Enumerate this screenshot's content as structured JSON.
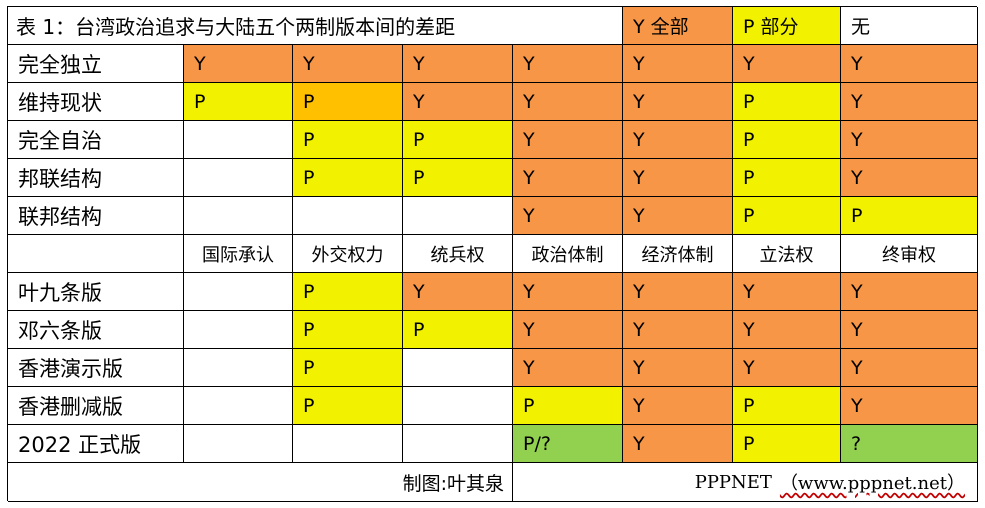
{
  "table": {
    "title": "表 1：台湾政治追求与大陆五个两制版本间的差距",
    "legend": {
      "all": "Y 全部",
      "partial": "P 部分",
      "none": "无"
    },
    "colors": {
      "orange": "#f79646",
      "yellow": "#f2f200",
      "amber": "#ffc000",
      "green": "#92d050",
      "white": "#ffffff"
    },
    "status_rows": [
      {
        "label": "完全独立",
        "cells": [
          {
            "v": "Y",
            "c": "O"
          },
          {
            "v": "Y",
            "c": "O"
          },
          {
            "v": "Y",
            "c": "O"
          },
          {
            "v": "Y",
            "c": "O"
          },
          {
            "v": "Y",
            "c": "O"
          },
          {
            "v": "Y",
            "c": "O"
          },
          {
            "v": "Y",
            "c": "O"
          }
        ]
      },
      {
        "label": "维持现状",
        "cells": [
          {
            "v": "P",
            "c": "Y"
          },
          {
            "v": "P",
            "c": "A"
          },
          {
            "v": "Y",
            "c": "O"
          },
          {
            "v": "Y",
            "c": "O"
          },
          {
            "v": "Y",
            "c": "O"
          },
          {
            "v": "P",
            "c": "Y"
          },
          {
            "v": "Y",
            "c": "O"
          }
        ]
      },
      {
        "label": "完全自治",
        "cells": [
          {
            "v": "",
            "c": "W"
          },
          {
            "v": "P",
            "c": "Y"
          },
          {
            "v": "P",
            "c": "Y"
          },
          {
            "v": "Y",
            "c": "O"
          },
          {
            "v": "Y",
            "c": "O"
          },
          {
            "v": "P",
            "c": "Y"
          },
          {
            "v": "Y",
            "c": "O"
          }
        ]
      },
      {
        "label": "邦联结构",
        "cells": [
          {
            "v": "",
            "c": "W"
          },
          {
            "v": "P",
            "c": "Y"
          },
          {
            "v": "P",
            "c": "Y"
          },
          {
            "v": "Y",
            "c": "O"
          },
          {
            "v": "Y",
            "c": "O"
          },
          {
            "v": "P",
            "c": "Y"
          },
          {
            "v": "Y",
            "c": "O"
          }
        ]
      },
      {
        "label": "联邦结构",
        "cells": [
          {
            "v": "",
            "c": "W"
          },
          {
            "v": "",
            "c": "W"
          },
          {
            "v": "",
            "c": "W"
          },
          {
            "v": "Y",
            "c": "O"
          },
          {
            "v": "Y",
            "c": "O"
          },
          {
            "v": "P",
            "c": "Y"
          },
          {
            "v": "P",
            "c": "Y"
          }
        ]
      }
    ],
    "categories": [
      "国际承认",
      "外交权力",
      "统兵权",
      "政治体制",
      "经济体制",
      "立法权",
      "终审权"
    ],
    "version_rows": [
      {
        "label": "叶九条版",
        "cells": [
          {
            "v": "",
            "c": "W"
          },
          {
            "v": "P",
            "c": "Y"
          },
          {
            "v": "Y",
            "c": "O"
          },
          {
            "v": "Y",
            "c": "O"
          },
          {
            "v": "Y",
            "c": "O"
          },
          {
            "v": "Y",
            "c": "O"
          },
          {
            "v": "Y",
            "c": "O"
          }
        ]
      },
      {
        "label": "邓六条版",
        "cells": [
          {
            "v": "",
            "c": "W"
          },
          {
            "v": "P",
            "c": "Y"
          },
          {
            "v": "P",
            "c": "Y"
          },
          {
            "v": "Y",
            "c": "O"
          },
          {
            "v": "Y",
            "c": "O"
          },
          {
            "v": "Y",
            "c": "O"
          },
          {
            "v": "Y",
            "c": "O"
          }
        ]
      },
      {
        "label": "香港演示版",
        "cells": [
          {
            "v": "",
            "c": "W"
          },
          {
            "v": "P",
            "c": "Y"
          },
          {
            "v": "",
            "c": "W"
          },
          {
            "v": "Y",
            "c": "O"
          },
          {
            "v": "Y",
            "c": "O"
          },
          {
            "v": "Y",
            "c": "O"
          },
          {
            "v": "Y",
            "c": "O"
          }
        ]
      },
      {
        "label": "香港删减版",
        "cells": [
          {
            "v": "",
            "c": "W"
          },
          {
            "v": "P",
            "c": "Y"
          },
          {
            "v": "",
            "c": "W"
          },
          {
            "v": "P",
            "c": "Y"
          },
          {
            "v": "Y",
            "c": "O"
          },
          {
            "v": "P",
            "c": "Y"
          },
          {
            "v": "Y",
            "c": "O"
          }
        ]
      },
      {
        "label": "2022 正式版",
        "cells": [
          {
            "v": "",
            "c": "W"
          },
          {
            "v": "",
            "c": "W"
          },
          {
            "v": "",
            "c": "W"
          },
          {
            "v": "P/?",
            "c": "G"
          },
          {
            "v": "Y",
            "c": "O"
          },
          {
            "v": "P",
            "c": "Y"
          },
          {
            "v": "?",
            "c": "G"
          }
        ]
      }
    ],
    "footer": {
      "credit": "制图:叶其泉",
      "source_name": "PPPNET",
      "source_url": "（www.pppnet.net）"
    }
  }
}
